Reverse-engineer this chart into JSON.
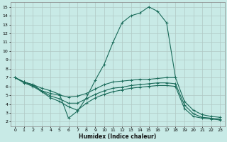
{
  "xlabel": "Humidex (Indice chaleur)",
  "bg_color": "#c8eae6",
  "grid_color": "#b0c8c4",
  "line_color": "#1a6b5a",
  "xlim": [
    -0.5,
    23.5
  ],
  "ylim": [
    1.5,
    15.5
  ],
  "xticks": [
    0,
    1,
    2,
    3,
    4,
    5,
    6,
    7,
    8,
    9,
    10,
    11,
    12,
    13,
    14,
    15,
    16,
    17,
    18,
    19,
    20,
    21,
    22,
    23
  ],
  "yticks": [
    2,
    3,
    4,
    5,
    6,
    7,
    8,
    9,
    10,
    11,
    12,
    13,
    14,
    15
  ],
  "series1_x": [
    0,
    1,
    2,
    3,
    4,
    5,
    6,
    7,
    8,
    9,
    10,
    11,
    12,
    13,
    14,
    15,
    16,
    17,
    18
  ],
  "series1_y": [
    7.0,
    6.5,
    6.2,
    5.8,
    5.5,
    5.1,
    2.4,
    3.2,
    4.7,
    6.7,
    8.5,
    11.0,
    13.2,
    14.0,
    14.3,
    15.0,
    14.5,
    13.2,
    7.0
  ],
  "series2_x": [
    0,
    1,
    2,
    3,
    4,
    5,
    6,
    7,
    8,
    9,
    10,
    11,
    12,
    13,
    14,
    15,
    16,
    17,
    18,
    19,
    20,
    21,
    22,
    23
  ],
  "series2_y": [
    7.0,
    6.5,
    6.2,
    5.5,
    5.2,
    5.0,
    4.8,
    4.9,
    5.2,
    5.7,
    6.2,
    6.5,
    6.6,
    6.7,
    6.8,
    6.8,
    6.9,
    7.0,
    7.0,
    4.3,
    3.3,
    2.8,
    2.6,
    2.5
  ],
  "series3_x": [
    0,
    1,
    2,
    3,
    4,
    5,
    6,
    7,
    8,
    9,
    10,
    11,
    12,
    13,
    14,
    15,
    16,
    17,
    18,
    19,
    20,
    21,
    22,
    23
  ],
  "series3_y": [
    7.0,
    6.5,
    6.1,
    5.5,
    4.9,
    4.6,
    4.1,
    4.1,
    4.6,
    5.1,
    5.5,
    5.8,
    5.9,
    6.1,
    6.2,
    6.3,
    6.4,
    6.4,
    6.3,
    3.9,
    2.9,
    2.5,
    2.4,
    2.3
  ],
  "series4_x": [
    0,
    1,
    2,
    3,
    4,
    5,
    6,
    7,
    8,
    9,
    10,
    11,
    12,
    13,
    14,
    15,
    16,
    17,
    18,
    19,
    20,
    21,
    22,
    23
  ],
  "series4_y": [
    7.0,
    6.4,
    6.0,
    5.4,
    4.7,
    4.3,
    3.7,
    3.3,
    4.1,
    4.7,
    5.1,
    5.4,
    5.6,
    5.8,
    5.9,
    6.0,
    6.1,
    6.1,
    6.0,
    3.5,
    2.6,
    2.4,
    2.3,
    2.2
  ]
}
